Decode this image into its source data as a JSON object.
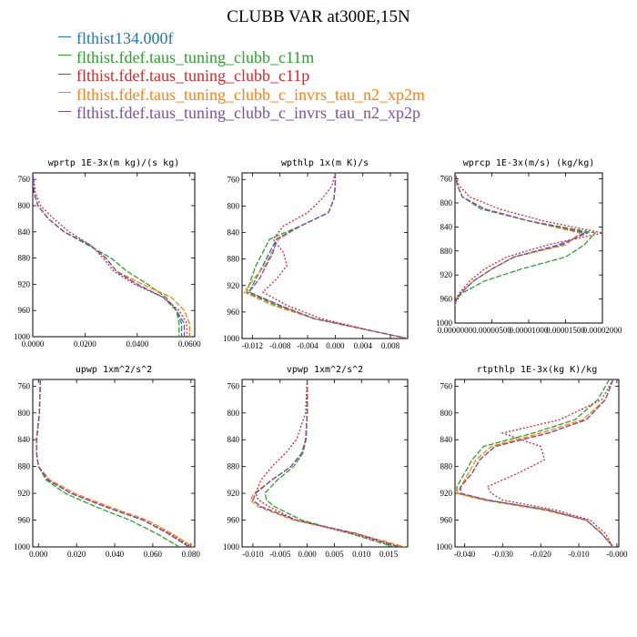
{
  "title": "CLUBB VAR at300E,15N",
  "colors": {
    "flthist134.000f": "#1f77b4",
    "flthist.fdef.taus_tuning_clubb_c11m": "#2ca02c",
    "flthist.fdef.taus_tuning_clubb_c11p": "#d62728",
    "flthist.fdef.taus_tuning_clubb_c_invrs_tau_n2_xp2m": "#ff7f0e",
    "flthist.fdef.taus_tuning_clubb_c_invrs_tau_n2_xp2p": "#7b4fa8"
  },
  "legend": [
    {
      "label": "flthist134.000f",
      "color": "#1f77b4"
    },
    {
      "label": "flthist.fdef.taus_tuning_clubb_c11m",
      "color": "#2ca02c"
    },
    {
      "label": "flthist.fdef.taus_tuning_clubb_c11p",
      "color": "#d62728"
    },
    {
      "label": "flthist.fdef.taus_tuning_clubb_c_invrs_tau_n2_xp2m",
      "color": "#ff7f0e"
    },
    {
      "label": "flthist.fdef.taus_tuning_clubb_c_invrs_tau_n2_xp2p",
      "color": "#7b4fa8"
    }
  ],
  "chart_data": [
    {
      "type": "line",
      "title": "wprtp  1E-3x(m kg)/(s kg)",
      "xlim": [
        0.0,
        0.062
      ],
      "ylim": [
        1000,
        750
      ],
      "xticks": [
        0.0,
        0.02,
        0.04,
        0.06
      ],
      "xticklabels": [
        "0.0000",
        "0.0200",
        "0.0400",
        "0.0600"
      ],
      "yticks": [
        760,
        800,
        840,
        880,
        920,
        960,
        1000
      ],
      "y": [
        750,
        780,
        800,
        820,
        840,
        860,
        880,
        900,
        920,
        940,
        960,
        980,
        1000
      ],
      "series": [
        {
          "name": "flthist134.000f",
          "values": [
            0.0,
            0.0005,
            0.002,
            0.006,
            0.012,
            0.022,
            0.028,
            0.032,
            0.04,
            0.05,
            0.055,
            0.057,
            0.057
          ]
        },
        {
          "name": "flthist.fdef.taus_tuning_clubb_c11m",
          "values": [
            0.0,
            0.0005,
            0.002,
            0.006,
            0.012,
            0.021,
            0.03,
            0.036,
            0.044,
            0.051,
            0.055,
            0.056,
            0.056
          ]
        },
        {
          "name": "flthist.fdef.taus_tuning_clubb_c11p",
          "values": [
            0.0,
            0.001,
            0.003,
            0.008,
            0.014,
            0.022,
            0.027,
            0.031,
            0.039,
            0.05,
            0.056,
            0.059,
            0.059
          ]
        },
        {
          "name": "flthist.fdef.taus_tuning_clubb_c_invrs_tau_n2_xp2m",
          "values": [
            0.0,
            0.0005,
            0.002,
            0.006,
            0.012,
            0.022,
            0.028,
            0.032,
            0.042,
            0.053,
            0.058,
            0.06,
            0.06
          ]
        },
        {
          "name": "flthist.fdef.taus_tuning_clubb_c_invrs_tau_n2_xp2p",
          "values": [
            0.0,
            0.0005,
            0.002,
            0.006,
            0.012,
            0.022,
            0.028,
            0.032,
            0.04,
            0.05,
            0.055,
            0.058,
            0.058
          ]
        }
      ]
    },
    {
      "type": "line",
      "title": "wpthlp  1x(m K)/s",
      "xlim": [
        -0.0135,
        0.0105
      ],
      "ylim": [
        1000,
        750
      ],
      "xticks": [
        -0.012,
        -0.008,
        -0.004,
        0.0,
        0.004,
        0.008
      ],
      "xticklabels": [
        "-0.012",
        "-0.008",
        "-0.004",
        "0.000",
        "0.004",
        "0.008"
      ],
      "yticks": [
        760,
        800,
        840,
        880,
        920,
        960,
        1000
      ],
      "y": [
        750,
        770,
        790,
        810,
        830,
        850,
        870,
        890,
        910,
        930,
        950,
        970,
        990,
        1000
      ],
      "series": [
        {
          "name": "flthist134.000f",
          "values": [
            0.0,
            0.0,
            -0.0002,
            -0.001,
            -0.005,
            -0.0085,
            -0.0095,
            -0.0105,
            -0.0115,
            -0.0125,
            -0.008,
            -0.003,
            0.006,
            0.0105
          ]
        },
        {
          "name": "flthist.fdef.taus_tuning_clubb_c11m",
          "values": [
            0.0,
            0.0,
            -0.0002,
            -0.001,
            -0.005,
            -0.0095,
            -0.0105,
            -0.0115,
            -0.0122,
            -0.0128,
            -0.0085,
            -0.003,
            0.006,
            0.0105
          ]
        },
        {
          "name": "flthist.fdef.taus_tuning_clubb_c11p",
          "values": [
            0.0,
            -0.0005,
            -0.002,
            -0.004,
            -0.0075,
            -0.009,
            -0.0075,
            -0.007,
            -0.0085,
            -0.0105,
            -0.007,
            -0.002,
            0.006,
            0.0105
          ]
        },
        {
          "name": "flthist.fdef.taus_tuning_clubb_c_invrs_tau_n2_xp2m",
          "values": [
            0.0,
            0.0,
            -0.0002,
            -0.001,
            -0.005,
            -0.0082,
            -0.0092,
            -0.0102,
            -0.0118,
            -0.0132,
            -0.009,
            -0.003,
            0.006,
            0.0105
          ]
        },
        {
          "name": "flthist.fdef.taus_tuning_clubb_c_invrs_tau_n2_xp2p",
          "values": [
            0.0,
            0.0,
            -0.0002,
            -0.001,
            -0.005,
            -0.0085,
            -0.009,
            -0.01,
            -0.011,
            -0.0125,
            -0.008,
            -0.003,
            0.006,
            0.0105
          ]
        }
      ]
    },
    {
      "type": "line",
      "title": "wprcp  1E-3x(m/s) (kg/kg)",
      "xlim": [
        0.0,
        2e-05
      ],
      "ylim": [
        1000,
        750
      ],
      "xticks": [
        0.0,
        5e-06,
        1e-05,
        1.5e-05,
        2e-05
      ],
      "xticklabels": [
        "0.0000000",
        "0.00000500",
        "0.00001000",
        "0.00001500",
        "0.00002000"
      ],
      "yticks": [
        760,
        800,
        840,
        880,
        920,
        960,
        1000
      ],
      "y": [
        750,
        770,
        790,
        810,
        830,
        850,
        870,
        890,
        910,
        930,
        950,
        960,
        970
      ],
      "series": [
        {
          "name": "flthist134.000f",
          "values": [
            0.0,
            3e-07,
            1e-06,
            4e-06,
            1e-05,
            1.75e-05,
            1.45e-05,
            8e-06,
            5e-06,
            2.5e-06,
            8e-07,
            2e-07,
            0.0
          ]
        },
        {
          "name": "flthist.fdef.taus_tuning_clubb_c11m",
          "values": [
            0.0,
            3e-07,
            1e-06,
            3.5e-06,
            1e-05,
            1.9e-05,
            1.75e-05,
            1.5e-05,
            9e-06,
            4e-06,
            1e-06,
            2e-07,
            0.0
          ]
        },
        {
          "name": "flthist.fdef.taus_tuning_clubb_c11p",
          "values": [
            0.0,
            5e-07,
            2e-06,
            6e-06,
            1.2e-05,
            2e-05,
            1.25e-05,
            7e-06,
            4e-06,
            2e-06,
            6e-07,
            1e-07,
            0.0
          ]
        },
        {
          "name": "flthist.fdef.taus_tuning_clubb_c_invrs_tau_n2_xp2m",
          "values": [
            0.0,
            3e-07,
            1e-06,
            4e-06,
            1e-05,
            1.7e-05,
            1.5e-05,
            8e-06,
            5e-06,
            2.5e-06,
            8e-07,
            2e-07,
            0.0
          ]
        },
        {
          "name": "flthist.fdef.taus_tuning_clubb_c_invrs_tau_n2_xp2p",
          "values": [
            0.0,
            3e-07,
            1e-06,
            4e-06,
            1e-05,
            1.8e-05,
            1.4e-05,
            8e-06,
            5e-06,
            2.5e-06,
            8e-07,
            2e-07,
            0.0
          ]
        }
      ]
    },
    {
      "type": "line",
      "title": "upwp  1xm^2/s^2",
      "xlim": [
        -0.003,
        0.082
      ],
      "ylim": [
        1000,
        750
      ],
      "xticks": [
        0.0,
        0.02,
        0.04,
        0.06,
        0.08
      ],
      "xticklabels": [
        "0.000",
        "0.020",
        "0.040",
        "0.060",
        "0.080"
      ],
      "yticks": [
        760,
        800,
        840,
        880,
        920,
        960,
        1000
      ],
      "y": [
        750,
        800,
        840,
        860,
        880,
        900,
        920,
        940,
        960,
        980,
        1000
      ],
      "series": [
        {
          "name": "flthist134.000f",
          "values": [
            0.001,
            0.0005,
            -0.001,
            -0.001,
            0.0,
            0.005,
            0.017,
            0.035,
            0.055,
            0.068,
            0.079
          ]
        },
        {
          "name": "flthist.fdef.taus_tuning_clubb_c11m",
          "values": [
            0.001,
            0.0005,
            -0.001,
            -0.001,
            0.0,
            0.004,
            0.014,
            0.03,
            0.048,
            0.062,
            0.074
          ]
        },
        {
          "name": "flthist.fdef.taus_tuning_clubb_c11p",
          "values": [
            0.001,
            0.0005,
            -0.001,
            -0.001,
            0.0,
            0.005,
            0.017,
            0.035,
            0.055,
            0.069,
            0.08
          ]
        },
        {
          "name": "flthist.fdef.taus_tuning_clubb_c_invrs_tau_n2_xp2m",
          "values": [
            0.001,
            0.0005,
            -0.001,
            -0.001,
            0.0,
            0.006,
            0.019,
            0.037,
            0.057,
            0.07,
            0.081
          ]
        },
        {
          "name": "flthist.fdef.taus_tuning_clubb_c_invrs_tau_n2_xp2p",
          "values": [
            0.001,
            0.0005,
            -0.001,
            -0.001,
            0.0,
            0.005,
            0.017,
            0.035,
            0.055,
            0.068,
            0.079
          ]
        }
      ]
    },
    {
      "type": "line",
      "title": "vpwp  1xm^2/s^2",
      "xlim": [
        -0.012,
        0.0185
      ],
      "ylim": [
        1000,
        750
      ],
      "xticks": [
        -0.01,
        -0.005,
        0.0,
        0.005,
        0.01,
        0.015
      ],
      "xticklabels": [
        "-0.010",
        "-0.005",
        "0.000",
        "0.005",
        "0.010",
        "0.015"
      ],
      "yticks": [
        760,
        800,
        840,
        880,
        920,
        960,
        1000
      ],
      "y": [
        750,
        800,
        840,
        860,
        880,
        900,
        920,
        930,
        940,
        960,
        980,
        1000
      ],
      "series": [
        {
          "name": "flthist134.000f",
          "values": [
            0.0,
            0.0,
            -0.0003,
            -0.001,
            -0.003,
            -0.0065,
            -0.0095,
            -0.01,
            -0.0085,
            -0.002,
            0.009,
            0.017
          ]
        },
        {
          "name": "flthist.fdef.taus_tuning_clubb_c11m",
          "values": [
            0.0,
            0.0,
            -0.0002,
            -0.0008,
            -0.0025,
            -0.0055,
            -0.0078,
            -0.0075,
            -0.006,
            -0.001,
            0.008,
            0.016
          ]
        },
        {
          "name": "flthist.fdef.taus_tuning_clubb_c11p",
          "values": [
            0.0,
            -0.0003,
            -0.002,
            -0.004,
            -0.0065,
            -0.0085,
            -0.0095,
            -0.009,
            -0.007,
            -0.002,
            0.008,
            0.017
          ]
        },
        {
          "name": "flthist.fdef.taus_tuning_clubb_c_invrs_tau_n2_xp2m",
          "values": [
            0.0,
            0.0,
            -0.0003,
            -0.001,
            -0.003,
            -0.0065,
            -0.0098,
            -0.0105,
            -0.009,
            -0.0025,
            0.009,
            0.018
          ]
        },
        {
          "name": "flthist.fdef.taus_tuning_clubb_c_invrs_tau_n2_xp2p",
          "values": [
            0.0,
            0.0,
            -0.0003,
            -0.001,
            -0.003,
            -0.0065,
            -0.0095,
            -0.01,
            -0.0085,
            -0.002,
            0.009,
            0.017
          ]
        }
      ]
    },
    {
      "type": "line",
      "title": "rtpthlp  1E-3x(kg K)/kg",
      "xlim": [
        -0.0425,
        0.0005
      ],
      "ylim": [
        1000,
        750
      ],
      "xticks": [
        -0.04,
        -0.03,
        -0.02,
        -0.01,
        0.0
      ],
      "xticklabels": [
        "-0.040",
        "-0.030",
        "-0.020",
        "-0.010",
        "-0.000"
      ],
      "yticks": [
        760,
        800,
        840,
        880,
        920,
        960,
        1000
      ],
      "y": [
        750,
        780,
        810,
        830,
        850,
        870,
        890,
        910,
        920,
        930,
        945,
        960,
        980,
        1000
      ],
      "series": [
        {
          "name": "flthist134.000f",
          "values": [
            -0.001,
            -0.003,
            -0.008,
            -0.018,
            -0.032,
            -0.036,
            -0.038,
            -0.041,
            -0.041,
            -0.034,
            -0.018,
            -0.008,
            -0.004,
            -0.001
          ]
        },
        {
          "name": "flthist.fdef.taus_tuning_clubb_c11m",
          "values": [
            -0.002,
            -0.005,
            -0.011,
            -0.022,
            -0.035,
            -0.038,
            -0.04,
            -0.042,
            -0.042,
            -0.034,
            -0.018,
            -0.008,
            -0.004,
            -0.001
          ]
        },
        {
          "name": "flthist.fdef.taus_tuning_clubb_c11p",
          "values": [
            -0.001,
            -0.004,
            -0.015,
            -0.03,
            -0.02,
            -0.019,
            -0.026,
            -0.034,
            -0.033,
            -0.03,
            -0.016,
            -0.007,
            -0.003,
            -0.001
          ]
        },
        {
          "name": "flthist.fdef.taus_tuning_clubb_c_invrs_tau_n2_xp2m",
          "values": [
            -0.001,
            -0.003,
            -0.009,
            -0.02,
            -0.033,
            -0.037,
            -0.039,
            -0.041,
            -0.042,
            -0.035,
            -0.019,
            -0.008,
            -0.004,
            -0.001
          ]
        },
        {
          "name": "flthist.fdef.taus_tuning_clubb_c_invrs_tau_n2_xp2p",
          "values": [
            -0.001,
            -0.003,
            -0.008,
            -0.018,
            -0.032,
            -0.036,
            -0.038,
            -0.041,
            -0.041,
            -0.034,
            -0.018,
            -0.008,
            -0.004,
            -0.001
          ]
        }
      ]
    }
  ]
}
